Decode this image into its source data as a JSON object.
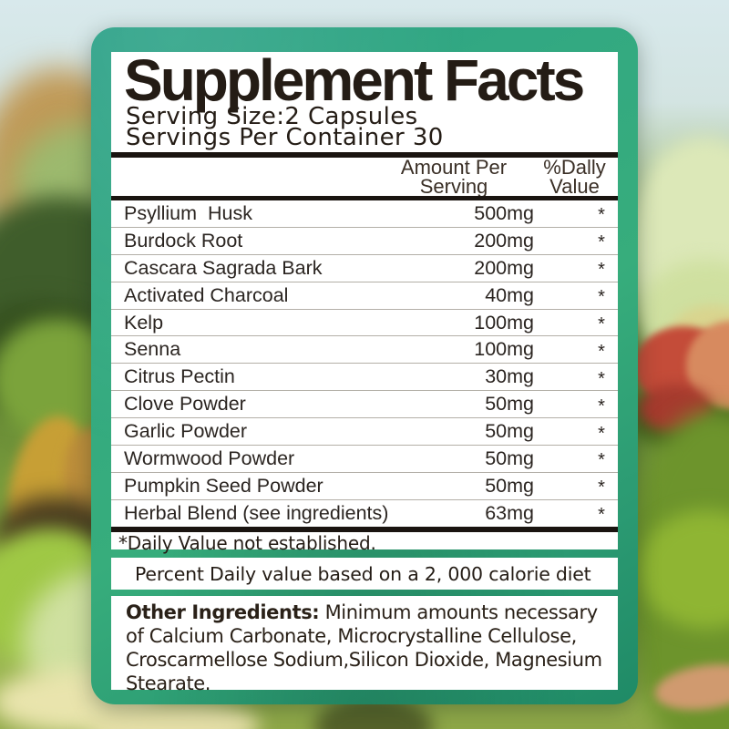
{
  "label": {
    "title": "Supplement Facts",
    "serving_size": "Serving Size:2 Capsules",
    "servings_per_container": "Servings Per Container 30",
    "header": {
      "amount": [
        "Amount Per",
        "Serving"
      ],
      "dv": [
        "%Dally",
        "Value"
      ]
    },
    "rows": [
      {
        "name": "Psyllium  Husk",
        "amount": "500mg",
        "dv": "*"
      },
      {
        "name": "Burdock Root",
        "amount": "200mg",
        "dv": "*"
      },
      {
        "name": "Cascara Sagrada Bark",
        "amount": "200mg",
        "dv": "*"
      },
      {
        "name": "Activated Charcoal",
        "amount": "40mg",
        "dv": "*"
      },
      {
        "name": "Kelp",
        "amount": "100mg",
        "dv": "*"
      },
      {
        "name": "Senna",
        "amount": "100mg",
        "dv": "*"
      },
      {
        "name": "Citrus Pectin",
        "amount": "30mg",
        "dv": "*"
      },
      {
        "name": "Clove Powder",
        "amount": "50mg",
        "dv": "*"
      },
      {
        "name": "Garlic Powder",
        "amount": "50mg",
        "dv": "*"
      },
      {
        "name": "Wormwood Powder",
        "amount": "50mg",
        "dv": "*"
      },
      {
        "name": "Pumpkin Seed Powder",
        "amount": "50mg",
        "dv": "*"
      },
      {
        "name": "Herbal Blend (see ingredients)",
        "amount": "63mg",
        "dv": "*"
      }
    ],
    "footnote": "*Daily Value not established.",
    "percent_note": "Percent Daily value based on a 2, 000 calorie diet",
    "other_ingredients_label": "Other Ingredients:",
    "other_ingredients_text": "Minimum amounts necessary of Calcium Carbonate, Microcrystalline Cellulose, Croscarmellose Sodium,Silicon Dioxide, Magnesium Stearate."
  },
  "colors": {
    "card_green": "#37ad7c",
    "card_green_light": "#2ba188",
    "card_green_dark": "#1f8a66",
    "panel_white": "#ffffff",
    "bar_black": "#1a1410",
    "text_dark": "#241c15",
    "row_text": "#2b2521",
    "separator": "#b3afa7"
  }
}
